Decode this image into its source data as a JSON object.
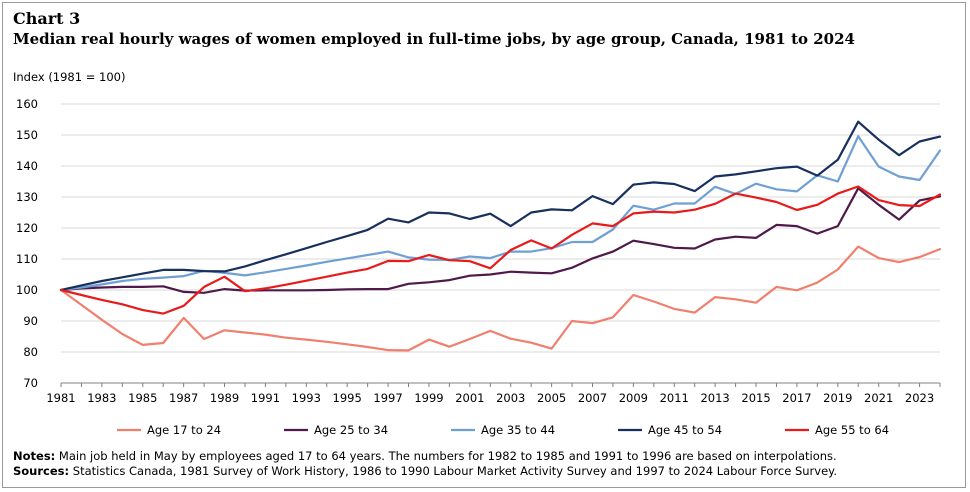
{
  "chart_label": "Chart 3",
  "chart_title": "Median real hourly wages of women employed in full-time jobs, by age group, Canada, 1981 to 2024",
  "notes_label": "Notes:",
  "notes_text": " Main job held in May by employees aged 17 to 64 years. The numbers for 1982 to 1985 and 1991 to 1996 are based on interpolations.",
  "sources_label": "Sources:",
  "sources_text": " Statistics Canada, 1981 Survey of Work History, 1986 to 1990 Labour Market Activity Survey and 1997 to 2024 Labour Force Survey.",
  "chart_data": {
    "type": "line",
    "title": "Median real hourly wages of women employed in full-time jobs, by age group, Canada, 1981 to 2024",
    "ylabel": "Index (1981 = 100)",
    "xlabel": "",
    "ylim": [
      70,
      160
    ],
    "yticks": [
      "70",
      "80",
      "90",
      "100",
      "110",
      "120",
      "130",
      "140",
      "150",
      "160"
    ],
    "x": [
      1981,
      1982,
      1983,
      1984,
      1985,
      1986,
      1987,
      1988,
      1989,
      1990,
      1991,
      1992,
      1993,
      1994,
      1995,
      1996,
      1997,
      1998,
      1999,
      2000,
      2001,
      2002,
      2003,
      2004,
      2005,
      2006,
      2007,
      2008,
      2009,
      2010,
      2011,
      2012,
      2013,
      2014,
      2015,
      2016,
      2017,
      2018,
      2019,
      2020,
      2021,
      2022,
      2023,
      2024
    ],
    "xticks": [
      "1981",
      "1983",
      "1985",
      "1987",
      "1989",
      "1991",
      "1993",
      "1995",
      "1997",
      "1999",
      "2001",
      "2003",
      "2005",
      "2007",
      "2009",
      "2011",
      "2013",
      "2015",
      "2017",
      "2019",
      "2021",
      "2023"
    ],
    "grid": true,
    "legend_position": "bottom",
    "series": [
      {
        "name": "Age 17 to 24",
        "color": "#f07f6e",
        "values": [
          100,
          95.2,
          90.4,
          85.8,
          82.3,
          82.9,
          91.0,
          84.2,
          87.0,
          86.3,
          85.6,
          84.6,
          84.0,
          83.3,
          82.5,
          81.6,
          80.6,
          80.5,
          84.0,
          81.7,
          84.2,
          86.8,
          84.3,
          83.0,
          81.1,
          90.0,
          89.3,
          91.2,
          98.4,
          96.3,
          93.9,
          92.7,
          97.7,
          97.0,
          95.9,
          101.0,
          99.9,
          102.4,
          106.6,
          114.0,
          110.3,
          109.0,
          110.6,
          113.2
        ]
      },
      {
        "name": "Age 25 to 34",
        "color": "#4f1a4a",
        "values": [
          100,
          100.5,
          100.8,
          101.0,
          101.0,
          101.2,
          99.4,
          99.1,
          100.3,
          99.8,
          99.9,
          99.9,
          99.9,
          100.0,
          100.2,
          100.3,
          100.3,
          102.0,
          102.5,
          103.2,
          104.6,
          105.0,
          105.9,
          105.6,
          105.4,
          107.2,
          110.2,
          112.4,
          115.9,
          114.8,
          113.6,
          113.4,
          116.3,
          117.2,
          116.8,
          121.0,
          120.6,
          118.2,
          120.6,
          132.8,
          127.5,
          122.7,
          128.9,
          130.2
        ]
      },
      {
        "name": "Age 35 to 44",
        "color": "#6fa0d4",
        "values": [
          100,
          100.8,
          101.8,
          102.9,
          103.6,
          104.0,
          104.5,
          106.2,
          105.5,
          104.7,
          105.7,
          106.8,
          107.9,
          109.1,
          110.2,
          111.3,
          112.4,
          110.5,
          109.8,
          109.7,
          110.8,
          110.3,
          112.4,
          112.4,
          113.5,
          115.5,
          115.5,
          119.5,
          127.2,
          125.9,
          127.9,
          127.9,
          133.3,
          131.0,
          134.3,
          132.5,
          131.8,
          137.0,
          135.0,
          149.6,
          139.8,
          136.6,
          135.5,
          145.0
        ]
      },
      {
        "name": "Age 45 to 54",
        "color": "#17305e",
        "values": [
          100,
          101.5,
          102.9,
          104.1,
          105.3,
          106.5,
          106.5,
          106.1,
          106.0,
          107.6,
          109.6,
          111.5,
          113.5,
          115.5,
          117.4,
          119.4,
          123.0,
          121.8,
          125.0,
          124.7,
          122.9,
          124.6,
          120.6,
          125.0,
          126.0,
          125.7,
          130.3,
          127.7,
          134.0,
          134.7,
          134.2,
          131.9,
          136.6,
          137.3,
          138.3,
          139.3,
          139.8,
          136.9,
          142.0,
          154.3,
          148.5,
          143.5,
          147.9,
          149.5
        ]
      },
      {
        "name": "Age 55 to 64",
        "color": "#e81a1a",
        "values": [
          100,
          98.4,
          96.8,
          95.4,
          93.5,
          92.4,
          94.9,
          101.0,
          104.3,
          99.6,
          100.5,
          101.7,
          103.0,
          104.3,
          105.6,
          106.8,
          109.4,
          109.3,
          111.3,
          109.6,
          109.3,
          107.0,
          112.9,
          116.0,
          113.4,
          117.8,
          121.5,
          120.6,
          124.7,
          125.3,
          125.0,
          125.9,
          127.8,
          131.1,
          129.8,
          128.4,
          125.8,
          127.5,
          131.1,
          133.4,
          129.0,
          127.4,
          127.1,
          130.8
        ]
      }
    ]
  }
}
